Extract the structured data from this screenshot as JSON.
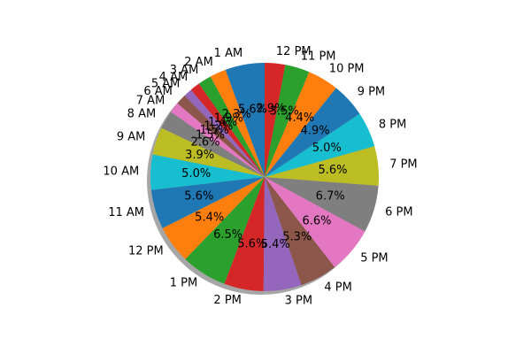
{
  "chart_data": {
    "type": "pie",
    "title": "",
    "shadow": true,
    "start_angle_deg": 90,
    "direction": "counterclockwise",
    "categories": [
      "1 AM",
      "2 AM",
      "3 AM",
      "4 AM",
      "5 AM",
      "6 AM",
      "7 AM",
      "8 AM",
      "9 AM",
      "10 AM",
      "11 AM",
      "12 PM",
      "1 PM",
      "2 PM",
      "3 PM",
      "4 PM",
      "5 PM",
      "6 PM",
      "7 PM",
      "8 PM",
      "9 PM",
      "10 PM",
      "11 PM",
      "12 PM"
    ],
    "values": [
      5.6,
      2.3,
      1.9,
      1.4,
      1.2,
      1.5,
      1.5,
      2.6,
      3.9,
      5.0,
      5.6,
      5.4,
      6.5,
      5.6,
      5.4,
      5.3,
      6.6,
      6.7,
      5.6,
      5.0,
      4.9,
      4.4,
      3.5,
      2.9
    ],
    "labels_pct": [
      "5.6%",
      "2.3%",
      "1.9%",
      "1.4%",
      "1.2%",
      "1.5%",
      "1.5%",
      "2.6%",
      "3.9%",
      "5.0%",
      "5.6%",
      "5.4%",
      "6.5%",
      "5.6%",
      "5.4%",
      "5.3%",
      "6.6%",
      "6.7%",
      "5.6%",
      "5.0%",
      "4.9%",
      "4.4%",
      "3.5%",
      "2.9%"
    ],
    "colors": [
      "#1f77b4",
      "#ff7f0e",
      "#2ca02c",
      "#d62728",
      "#9467bd",
      "#8c564b",
      "#e377c2",
      "#7f7f7f",
      "#bcbd22",
      "#17becf",
      "#1f77b4",
      "#ff7f0e",
      "#2ca02c",
      "#d62728",
      "#9467bd",
      "#8c564b",
      "#e377c2",
      "#7f7f7f",
      "#bcbd22",
      "#17becf",
      "#1f77b4",
      "#ff7f0e",
      "#2ca02c",
      "#d62728"
    ]
  }
}
